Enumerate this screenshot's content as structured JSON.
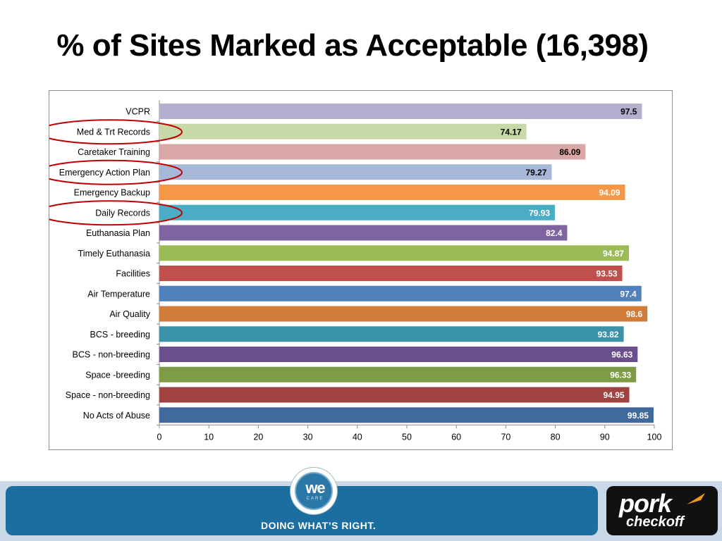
{
  "title": "% of Sites Marked as Acceptable (16,398)",
  "chart_data": {
    "type": "bar",
    "orientation": "horizontal",
    "title": "",
    "xlabel": "",
    "ylabel": "",
    "xlim": [
      0,
      100
    ],
    "x_ticks": [
      "0",
      "10",
      "20",
      "30",
      "40",
      "50",
      "60",
      "70",
      "80",
      "90",
      "100"
    ],
    "grid": false,
    "data_labels": true,
    "categories": [
      "VCPR",
      "Med & Trt Records",
      "Caretaker Training",
      "Emergency Action Plan",
      "Emergency Backup",
      "Daily Records",
      "Euthanasia Plan",
      "Timely Euthanasia",
      "Facilities",
      "Air Temperature",
      "Air Quality",
      "BCS - breeding",
      "BCS - non-breeding",
      "Space -breeding",
      "Space - non-breeding",
      "No Acts of Abuse"
    ],
    "values": [
      97.5,
      74.17,
      86.09,
      79.27,
      94.09,
      79.93,
      82.4,
      94.87,
      93.53,
      97.4,
      98.6,
      93.82,
      96.63,
      96.33,
      94.95,
      99.85
    ],
    "value_labels": [
      "97.5",
      "74.17",
      "86.09",
      "79.27",
      "94.09",
      "79.93",
      "82.4",
      "94.87",
      "93.53",
      "97.4",
      "98.6",
      "93.82",
      "96.63",
      "96.33",
      "94.95",
      "99.85"
    ],
    "colors": [
      "#b6aecf",
      "#c7d9a8",
      "#d9a7a6",
      "#a7b7d7",
      "#f79646",
      "#4bacc6",
      "#8064a2",
      "#9bbb59",
      "#c0504d",
      "#4f81bd",
      "#d27c3a",
      "#3a93a8",
      "#6a4f8c",
      "#7e9c46",
      "#a04240",
      "#406a9c"
    ],
    "label_colors": [
      "#000000",
      "#000000",
      "#000000",
      "#000000",
      "#ffffff",
      "#ffffff",
      "#ffffff",
      "#ffffff",
      "#ffffff",
      "#ffffff",
      "#ffffff",
      "#ffffff",
      "#ffffff",
      "#ffffff",
      "#ffffff",
      "#ffffff"
    ],
    "highlighted": [
      "Med & Trt Records",
      "Emergency Action Plan",
      "Daily Records"
    ],
    "highlight_color": "#c00000"
  },
  "footer": {
    "tagline": "DOING WHAT’S RIGHT.",
    "logo_we": "we",
    "logo_care": "CARE",
    "brand_pork": "pork",
    "brand_checkoff": "checkoff",
    "brand_color": "#1d6ea0"
  }
}
